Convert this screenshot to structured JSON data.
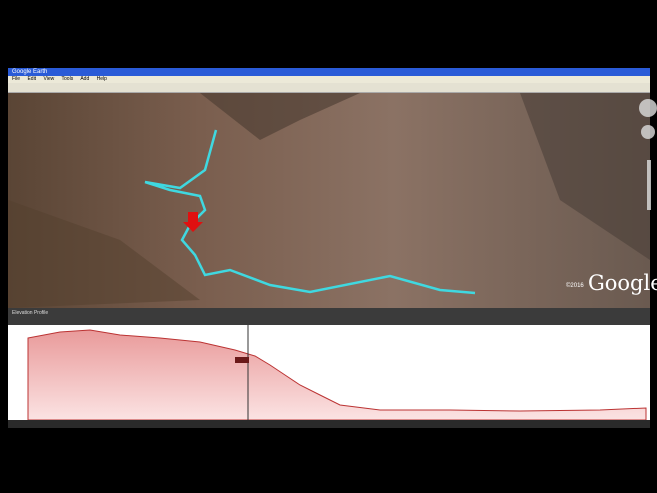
{
  "window": {
    "title": "Google Earth",
    "menu": [
      "File",
      "Edit",
      "View",
      "Tools",
      "Add",
      "Help"
    ]
  },
  "map": {
    "logo": "Google",
    "copyright": "©2016"
  },
  "profile": {
    "title": "Elevation Profile"
  }
}
